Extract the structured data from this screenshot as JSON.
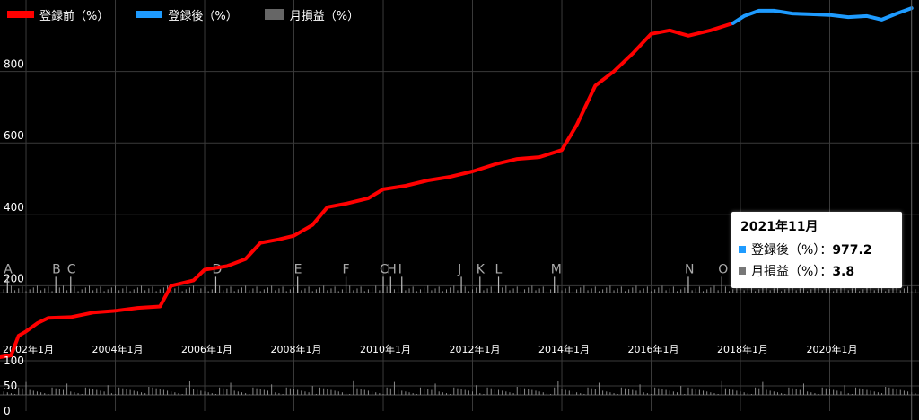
{
  "legend": [
    {
      "label": "登録前（%）",
      "color": "#ff0000"
    },
    {
      "label": "登録後（%）",
      "color": "#1e9bff"
    },
    {
      "label": "月損益（%）",
      "color": "#666666"
    }
  ],
  "tooltip": {
    "title": "2021年11月",
    "rows": [
      {
        "label": "登録後（%）",
        "sep": "：",
        "value": "977.2",
        "color": "#1e9bff"
      },
      {
        "label": "月損益（%）",
        "sep": "：",
        "value": "3.8",
        "color": "#777777"
      }
    ]
  },
  "chart_data": [
    {
      "type": "line",
      "y_ticks": [
        "200",
        "400",
        "600",
        "800"
      ],
      "ylim": [
        0,
        1000
      ],
      "x_ticks": [
        "2002年1月",
        "2004年1月",
        "2006年1月",
        "2008年1月",
        "2010年1月",
        "2012年1月",
        "2014年1月",
        "2016年1月",
        "2018年1月",
        "2020年1月"
      ],
      "xlim": [
        "2001-06",
        "2022-01"
      ],
      "grid": true,
      "legend_position": "top-left",
      "series": [
        {
          "name": "登録前（%）",
          "color": "#ff0000",
          "points": [
            [
              "2001-06",
              0
            ],
            [
              "2001-09",
              5
            ],
            [
              "2001-11",
              60
            ],
            [
              "2002-01",
              72
            ],
            [
              "2002-04",
              95
            ],
            [
              "2002-07",
              110
            ],
            [
              "2003-01",
              112
            ],
            [
              "2003-07",
              125
            ],
            [
              "2004-01",
              130
            ],
            [
              "2004-07",
              138
            ],
            [
              "2005-01",
              142
            ],
            [
              "2005-04",
              200
            ],
            [
              "2005-10",
              215
            ],
            [
              "2006-01",
              245
            ],
            [
              "2006-07",
              255
            ],
            [
              "2006-12",
              275
            ],
            [
              "2007-04",
              320
            ],
            [
              "2007-09",
              330
            ],
            [
              "2008-01",
              340
            ],
            [
              "2008-06",
              370
            ],
            [
              "2008-10",
              420
            ],
            [
              "2009-03",
              430
            ],
            [
              "2009-09",
              445
            ],
            [
              "2010-01",
              470
            ],
            [
              "2010-07",
              480
            ],
            [
              "2011-01",
              495
            ],
            [
              "2011-07",
              505
            ],
            [
              "2012-01",
              520
            ],
            [
              "2012-07",
              540
            ],
            [
              "2013-01",
              555
            ],
            [
              "2013-07",
              560
            ],
            [
              "2014-01",
              580
            ],
            [
              "2014-05",
              650
            ],
            [
              "2014-10",
              760
            ],
            [
              "2015-03",
              800
            ],
            [
              "2015-08",
              850
            ],
            [
              "2016-01",
              905
            ],
            [
              "2016-06",
              915
            ],
            [
              "2016-11",
              900
            ],
            [
              "2017-05",
              915
            ],
            [
              "2017-11",
              935
            ]
          ]
        },
        {
          "name": "登録後（%）",
          "color": "#1e9bff",
          "points": [
            [
              "2017-11",
              935
            ],
            [
              "2018-02",
              955
            ],
            [
              "2018-06",
              970
            ],
            [
              "2018-10",
              970
            ],
            [
              "2019-03",
              962
            ],
            [
              "2019-08",
              960
            ],
            [
              "2020-01",
              958
            ],
            [
              "2020-06",
              952
            ],
            [
              "2020-11",
              955
            ],
            [
              "2021-03",
              945
            ],
            [
              "2021-07",
              962
            ],
            [
              "2021-11",
              977.2
            ]
          ]
        }
      ],
      "annotations": [
        {
          "label": "A",
          "date": "2001-08"
        },
        {
          "label": "B",
          "date": "2002-09"
        },
        {
          "label": "C",
          "date": "2003-01"
        },
        {
          "label": "D",
          "date": "2006-04"
        },
        {
          "label": "E",
          "date": "2008-02"
        },
        {
          "label": "F",
          "date": "2009-03"
        },
        {
          "label": "C",
          "date": "2010-01"
        },
        {
          "label": "H",
          "date": "2010-03"
        },
        {
          "label": "I",
          "date": "2010-06"
        },
        {
          "label": "J",
          "date": "2011-10"
        },
        {
          "label": "K",
          "date": "2012-03"
        },
        {
          "label": "L",
          "date": "2012-08"
        },
        {
          "label": "M",
          "date": "2013-11"
        },
        {
          "label": "N",
          "date": "2016-11"
        },
        {
          "label": "O",
          "date": "2017-08"
        }
      ]
    },
    {
      "type": "bar",
      "y_ticks": [
        "0",
        "50",
        "100"
      ],
      "ylim": [
        0,
        100
      ],
      "series": [
        {
          "name": "月損益（%）",
          "color": "#666666"
        }
      ]
    }
  ]
}
